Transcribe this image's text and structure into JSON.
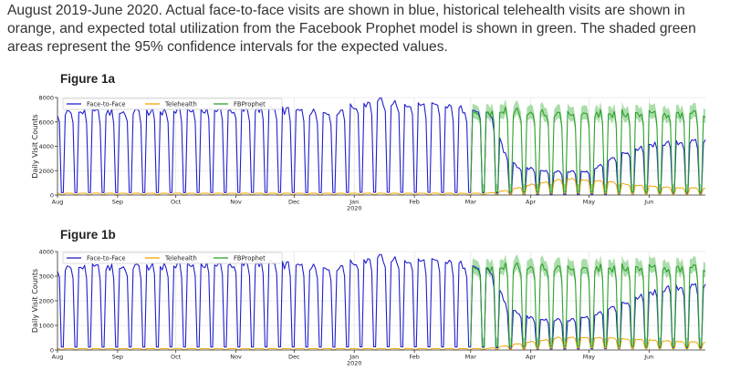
{
  "caption": "August 2019-June 2020. Actual face-to-face visits are shown in blue, historical telehealth visits are shown in orange, and expected total utilization from the Facebook Prophet model is shown in green. The shaded green areas represent the 95% confidence intervals for the expected values.",
  "colors": {
    "face": "#1f1fcc",
    "tele": "#f0a500",
    "prophet": "#2ca02c",
    "band": "#8fd18f"
  },
  "chart_data": [
    {
      "type": "line",
      "title": "Figure 1a",
      "xlabel": "",
      "ylabel": "Daily Visit Counts",
      "x_range": [
        "2019-08-01",
        "2020-06-30"
      ],
      "ylim": [
        0,
        8000
      ],
      "yticks": [
        0,
        2000,
        4000,
        6000,
        8000
      ],
      "xticks": [
        {
          "date": "2019-08-01",
          "label": "Aug"
        },
        {
          "date": "2019-09-01",
          "label": "Sep"
        },
        {
          "date": "2019-10-01",
          "label": "Oct"
        },
        {
          "date": "2019-11-01",
          "label": "Nov"
        },
        {
          "date": "2019-12-01",
          "label": "Dec"
        },
        {
          "date": "2020-01-01",
          "label": "Jan",
          "sublabel": "2020"
        },
        {
          "date": "2020-02-01",
          "label": "Feb"
        },
        {
          "date": "2020-03-01",
          "label": "Mar"
        },
        {
          "date": "2020-04-01",
          "label": "Apr"
        },
        {
          "date": "2020-05-01",
          "label": "May"
        },
        {
          "date": "2020-06-01",
          "label": "Jun"
        }
      ],
      "grid": true,
      "legend": "top-left",
      "series": [
        {
          "name": "Face-to-Face",
          "color": "#1f1fcc",
          "weekday_level": 6800,
          "weekend_level": 200,
          "points": [
            [
              "2019-08-01",
              6700
            ],
            [
              "2019-11-20",
              7000
            ],
            [
              "2019-12-20",
              6700
            ],
            [
              "2020-01-10",
              7700
            ],
            [
              "2020-02-28",
              7000
            ],
            [
              "2020-03-08",
              6800
            ],
            [
              "2020-03-14",
              5800
            ],
            [
              "2020-03-18",
              3600
            ],
            [
              "2020-03-25",
              2300
            ],
            [
              "2020-04-15",
              1900
            ],
            [
              "2020-05-01",
              2000
            ],
            [
              "2020-05-20",
              3500
            ],
            [
              "2020-06-05",
              4200
            ],
            [
              "2020-06-30",
              4400
            ]
          ]
        },
        {
          "name": "Telehealth",
          "color": "#f0a500",
          "weekday_level": 150,
          "weekend_level": 20,
          "points": [
            [
              "2019-08-01",
              150
            ],
            [
              "2020-03-10",
              150
            ],
            [
              "2020-03-20",
              400
            ],
            [
              "2020-04-05",
              1000
            ],
            [
              "2020-04-20",
              1350
            ],
            [
              "2020-05-05",
              1200
            ],
            [
              "2020-05-25",
              800
            ],
            [
              "2020-06-15",
              600
            ],
            [
              "2020-06-30",
              550
            ]
          ]
        },
        {
          "name": "FBProphet",
          "color": "#2ca02c",
          "weekday_level": 6800,
          "weekend_level": 250,
          "points": [
            [
              "2020-03-01",
              6700
            ],
            [
              "2020-03-20",
              6900
            ],
            [
              "2020-04-15",
              6600
            ],
            [
              "2020-05-15",
              6700
            ],
            [
              "2020-06-30",
              6600
            ]
          ]
        }
      ],
      "band": {
        "series": "FBProphet",
        "lower_offset": -500,
        "upper_offset": 650
      }
    },
    {
      "type": "line",
      "title": "Figure 1b",
      "xlabel": "",
      "ylabel": "Daily Visit Counts",
      "x_range": [
        "2019-08-01",
        "2020-06-30"
      ],
      "ylim": [
        0,
        4000
      ],
      "yticks": [
        0,
        1000,
        2000,
        3000,
        4000
      ],
      "xticks": [
        {
          "date": "2019-08-01",
          "label": "Aug"
        },
        {
          "date": "2019-09-01",
          "label": "Sep"
        },
        {
          "date": "2019-10-01",
          "label": "Oct"
        },
        {
          "date": "2019-11-01",
          "label": "Nov"
        },
        {
          "date": "2019-12-01",
          "label": "Dec"
        },
        {
          "date": "2020-01-01",
          "label": "Jan",
          "sublabel": "2020"
        },
        {
          "date": "2020-02-01",
          "label": "Feb"
        },
        {
          "date": "2020-03-01",
          "label": "Mar"
        },
        {
          "date": "2020-04-01",
          "label": "Apr"
        },
        {
          "date": "2020-05-01",
          "label": "May"
        },
        {
          "date": "2020-06-01",
          "label": "Jun"
        }
      ],
      "grid": true,
      "legend": "top-left",
      "series": [
        {
          "name": "Face-to-Face",
          "color": "#1f1fcc",
          "weekday_level": 3400,
          "weekend_level": 120,
          "points": [
            [
              "2019-08-01",
              3300
            ],
            [
              "2019-11-20",
              3500
            ],
            [
              "2019-12-20",
              3300
            ],
            [
              "2020-01-10",
              3750
            ],
            [
              "2020-02-28",
              3450
            ],
            [
              "2020-03-08",
              3300
            ],
            [
              "2020-03-14",
              2800
            ],
            [
              "2020-03-20",
              1700
            ],
            [
              "2020-04-01",
              1300
            ],
            [
              "2020-04-20",
              1200
            ],
            [
              "2020-05-10",
              1600
            ],
            [
              "2020-05-25",
              2100
            ],
            [
              "2020-06-10",
              2500
            ],
            [
              "2020-06-30",
              2600
            ]
          ]
        },
        {
          "name": "Telehealth",
          "color": "#f0a500",
          "weekday_level": 60,
          "weekend_level": 10,
          "points": [
            [
              "2019-08-01",
              60
            ],
            [
              "2020-03-10",
              60
            ],
            [
              "2020-03-25",
              250
            ],
            [
              "2020-04-15",
              500
            ],
            [
              "2020-05-01",
              520
            ],
            [
              "2020-05-20",
              450
            ],
            [
              "2020-06-15",
              350
            ],
            [
              "2020-06-30",
              300
            ]
          ]
        },
        {
          "name": "FBProphet",
          "color": "#2ca02c",
          "weekday_level": 3400,
          "weekend_level": 150,
          "points": [
            [
              "2020-03-01",
              3300
            ],
            [
              "2020-03-25",
              3400
            ],
            [
              "2020-04-20",
              3300
            ],
            [
              "2020-05-20",
              3350
            ],
            [
              "2020-06-30",
              3300
            ]
          ]
        }
      ],
      "band": {
        "series": "FBProphet",
        "lower_offset": -250,
        "upper_offset": 350
      }
    }
  ]
}
